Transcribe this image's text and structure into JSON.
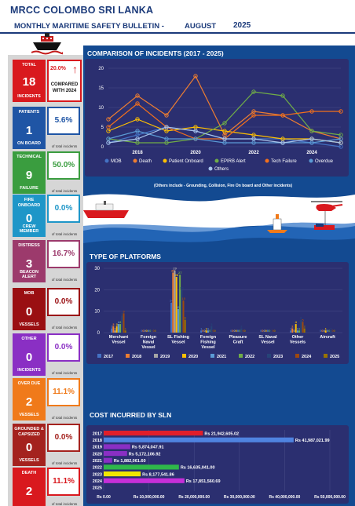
{
  "header": {
    "title": "MRCC COLOMBO SRI LANKA",
    "subtitle": "MONTHLY MARITIME SAFETY BULLETIN -",
    "month": "AUGUST",
    "year": "2025"
  },
  "stats": {
    "total": {
      "label": "TOTAL",
      "value": "18",
      "sub": "INCIDENTS",
      "pct": "20.0%",
      "compare": "COMPARED WITH 2024",
      "color": "#d9191e"
    },
    "cards": [
      {
        "label": "PATIENTS",
        "value": "1",
        "sub": "ON BOARD",
        "pct": "5.6%",
        "of": "of total incidents",
        "color": "#1f55a5"
      },
      {
        "label": "TECHNICAL",
        "value": "9",
        "sub": "FAILURE",
        "pct": "50.0%",
        "of": "of total incidents",
        "color": "#3a9d3f"
      },
      {
        "label": "FIRE ONBOARD",
        "value": "0",
        "sub": "CREW MEMBER",
        "pct": "0.0%",
        "of": "of total incidents",
        "color": "#1e96c8"
      },
      {
        "label": "DISTRESS",
        "value": "3",
        "sub": "BEACON ALERT",
        "pct": "16.7%",
        "of": "of total incidents",
        "color": "#9c3a6c"
      },
      {
        "label": "MOB",
        "value": "0",
        "sub": "VESSELS",
        "pct": "0.0%",
        "of": "of total incidents",
        "color": "#9a0f12"
      },
      {
        "label": "OTHER",
        "value": "0",
        "sub": "INCIDENTS",
        "pct": "0.0%",
        "of": "of total incidents",
        "color": "#8a2fc4"
      },
      {
        "label": "OVER DUE",
        "value": "2",
        "sub": "VESSELS",
        "pct": "11.1%",
        "of": "of total incidents",
        "color": "#f07a1a"
      },
      {
        "label": "GROUNDED & CAPSIZED",
        "value": "0",
        "sub": "VESSELS",
        "pct": "0.0%",
        "of": "of total incidents",
        "color": "#a4221e"
      },
      {
        "label": "DEATH",
        "value": "2",
        "sub": "",
        "pct": "11.1%",
        "of": "of total incidents",
        "color": "#d9191e"
      }
    ]
  },
  "sections": {
    "comparison": "COMPARISON OF INCIDENTS (2017 - 2025)",
    "platforms": "TYPE OF PLATFORMS",
    "cost": "COST INCURRED BY SLN",
    "footnote": "(Others include - Grounding, Collision, Fire On board and Other incidents)"
  },
  "chart_data": [
    {
      "type": "line",
      "title": "COMPARISON OF INCIDENTS (2017 - 2025)",
      "x": [
        2017,
        2018,
        2019,
        2020,
        2021,
        2022,
        2023,
        2024,
        2025
      ],
      "xticks": [
        2018,
        2020,
        2022,
        2024
      ],
      "ylim": [
        0,
        20
      ],
      "yticks": [
        0,
        5,
        10,
        15,
        20
      ],
      "series": [
        {
          "name": "MOB",
          "color": "#4472c4",
          "values": [
            1,
            3,
            5,
            4,
            2,
            2,
            2,
            1,
            0
          ]
        },
        {
          "name": "Death",
          "color": "#ed7d31",
          "values": [
            7,
            13,
            8,
            18,
            3,
            9,
            8,
            4,
            2
          ]
        },
        {
          "name": "Patient Onboard",
          "color": "#ffc000",
          "values": [
            4,
            7,
            4,
            5,
            4,
            3,
            2,
            2,
            1
          ]
        },
        {
          "name": "EPIRB Alert",
          "color": "#70ad47",
          "values": [
            2,
            1,
            1,
            2,
            6,
            14,
            13,
            4,
            3
          ]
        },
        {
          "name": "Tech Failure",
          "color": "#f4701b",
          "values": [
            5,
            11,
            5,
            2,
            2,
            8,
            8,
            9,
            9
          ]
        },
        {
          "name": "Overdue",
          "color": "#5b9bd5",
          "values": [
            2,
            4,
            2,
            2,
            1,
            1,
            1,
            1,
            2
          ]
        },
        {
          "name": "Others",
          "color": "#a9c4eb",
          "values": [
            1,
            2,
            5,
            4,
            2,
            2,
            1,
            2,
            1
          ]
        }
      ],
      "legend": "bottom"
    },
    {
      "type": "bar",
      "title": "TYPE OF PLATFORMS",
      "categories": [
        "Merchant Vessel",
        "Foreign Naval Vessel",
        "SL Fishing Vessel",
        "Foreign Fishing Vessel",
        "Pleasure Craft",
        "SL Naval Vessel",
        "Other Vessels",
        "Aircraft"
      ],
      "ylim": [
        0,
        30
      ],
      "yticks": [
        0,
        10,
        20,
        30
      ],
      "series": [
        {
          "name": "2017",
          "color": "#4472c4",
          "values": [
            2,
            0,
            14,
            1,
            0,
            0,
            1,
            0
          ]
        },
        {
          "name": "2018",
          "color": "#ed7d31",
          "values": [
            3,
            0,
            28,
            0,
            0,
            0,
            2,
            0
          ]
        },
        {
          "name": "2019",
          "color": "#a5a5a5",
          "values": [
            1,
            0,
            29,
            0,
            0,
            0,
            0,
            0
          ]
        },
        {
          "name": "2020",
          "color": "#ffc000",
          "values": [
            3,
            0,
            26,
            1,
            0,
            0,
            4,
            1
          ]
        },
        {
          "name": "2021",
          "color": "#5b9bd5",
          "values": [
            4,
            0,
            11,
            1,
            0,
            0,
            1,
            0
          ]
        },
        {
          "name": "2022",
          "color": "#70ad47",
          "values": [
            4,
            0,
            27,
            0,
            0,
            0,
            1,
            0
          ]
        },
        {
          "name": "2023",
          "color": "#264478",
          "values": [
            8,
            0,
            20,
            3,
            2,
            0,
            6,
            1
          ]
        },
        {
          "name": "2024",
          "color": "#9e480e",
          "values": [
            9,
            0,
            15,
            0,
            0,
            0,
            5,
            0
          ]
        },
        {
          "name": "2025",
          "color": "#997300",
          "values": [
            1,
            0,
            6,
            0,
            0,
            0,
            2,
            0
          ]
        }
      ],
      "legend": "bottom"
    },
    {
      "type": "bar",
      "orientation": "horizontal",
      "title": "COST INCURRED BY SLN",
      "categories": [
        "2017",
        "2018",
        "2019",
        "2020",
        "2021",
        "2022",
        "2023",
        "2024",
        "2025"
      ],
      "values": [
        21942605.02,
        41987021.99,
        5874047.91,
        5172106.92,
        1882061.6,
        16635041.0,
        8177541.86,
        17851560.69,
        0
      ],
      "labels": [
        "Rs 21,942,605.02",
        "Rs 41,987,021.99",
        "Rs 5,874,047.91",
        "Rs 5,172,106.92",
        "Rs 1,882,061.60",
        "Rs 16,635,041.00",
        "Rs 8,177,541.86",
        "Rs 17,851,560.69",
        ""
      ],
      "colors": [
        "#e01e2a",
        "#4f83e0",
        "#8a2fc4",
        "#8a2fc4",
        "#8a2fc4",
        "#2fb84a",
        "#f0e600",
        "#c52fd9",
        "#c52fd9"
      ],
      "xlim": [
        0,
        50000000
      ],
      "xticks": [
        "Rs 0.00",
        "Rs 10,000,000.00",
        "Rs 20,000,000.00",
        "Rs 30,000,000.00",
        "Rs 40,000,000.00",
        "Rs 50,000,000.00"
      ]
    }
  ]
}
